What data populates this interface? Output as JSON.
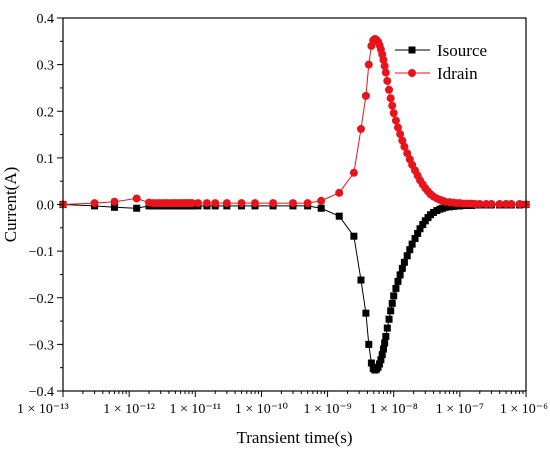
{
  "chart_data": {
    "type": "line",
    "xlabel": "Transient time(s)",
    "ylabel": "Current(A)",
    "x_scale": "log",
    "xlim": [
      1e-13,
      1e-06
    ],
    "ylim": [
      -0.4,
      0.4
    ],
    "x_tick_values": [
      1e-13,
      1e-12,
      1e-11,
      1e-10,
      1e-09,
      1e-08,
      1e-07,
      1e-06
    ],
    "x_tick_labels": [
      "1 × 10⁻¹³",
      "1 × 10⁻¹²",
      "1 × 10⁻¹¹",
      "1 × 10⁻¹⁰",
      "1 × 10⁻⁹",
      "1 × 10⁻⁸",
      "1 × 10⁻⁷",
      "1 × 10⁻⁶"
    ],
    "y_tick_values": [
      -0.4,
      -0.3,
      -0.2,
      -0.1,
      0.0,
      0.1,
      0.2,
      0.3,
      0.4
    ],
    "y_tick_labels": [
      "−0.4",
      "−0.3",
      "−0.2",
      "−0.1",
      "0.0",
      "0.1",
      "0.2",
      "0.3",
      "0.4"
    ],
    "legend_position": "top-right",
    "grid": false,
    "series": [
      {
        "name": "Isource",
        "color": "#000000",
        "marker": "square",
        "x": [
          1e-13,
          3e-13,
          6e-13,
          1.3e-12,
          2e-12,
          2.3e-12,
          2.6e-12,
          2.9e-12,
          3.2e-12,
          3.5e-12,
          3.8e-12,
          4.2e-12,
          4.6e-12,
          5e-12,
          5.5e-12,
          6e-12,
          6.5e-12,
          7e-12,
          7.5e-12,
          8e-12,
          8.5e-12,
          9e-12,
          1.1e-11,
          1.5e-11,
          2e-11,
          3e-11,
          5e-11,
          8e-11,
          1.5e-10,
          3e-10,
          5e-10,
          8e-10,
          1.5e-09,
          2.5e-09,
          3.2e-09,
          3.8e-09,
          4.2e-09,
          4.6e-09,
          4.9e-09,
          5.2e-09,
          5.5e-09,
          5.8e-09,
          6.1e-09,
          6.4e-09,
          6.7e-09,
          7e-09,
          7.3e-09,
          7.6e-09,
          8e-09,
          8.5e-09,
          9e-09,
          9.5e-09,
          1e-08,
          1.08e-08,
          1.16e-08,
          1.25e-08,
          1.35e-08,
          1.45e-08,
          1.6e-08,
          1.75e-08,
          1.9e-08,
          2.1e-08,
          2.3e-08,
          2.5e-08,
          2.75e-08,
          3e-08,
          3.3e-08,
          3.6e-08,
          4e-08,
          4.5e-08,
          5e-08,
          5.5e-08,
          6e-08,
          7e-08,
          8e-08,
          9e-08,
          1e-07,
          1.15e-07,
          1.3e-07,
          1.5e-07,
          1.7e-07,
          2e-07,
          2.5e-07,
          3e-07,
          4e-07,
          5e-07,
          6e-07,
          8e-07,
          1e-06
        ],
        "y": [
          0.0,
          -0.003,
          -0.006,
          -0.008,
          -0.003,
          -0.003,
          -0.003,
          -0.003,
          -0.003,
          -0.003,
          -0.003,
          -0.003,
          -0.003,
          -0.003,
          -0.003,
          -0.003,
          -0.003,
          -0.003,
          -0.003,
          -0.003,
          -0.003,
          -0.003,
          -0.003,
          -0.003,
          -0.003,
          -0.003,
          -0.003,
          -0.003,
          -0.003,
          -0.003,
          -0.003,
          -0.008,
          -0.025,
          -0.068,
          -0.162,
          -0.233,
          -0.3,
          -0.34,
          -0.352,
          -0.355,
          -0.353,
          -0.349,
          -0.342,
          -0.333,
          -0.322,
          -0.31,
          -0.297,
          -0.283,
          -0.265,
          -0.246,
          -0.228,
          -0.212,
          -0.196,
          -0.18,
          -0.165,
          -0.151,
          -0.137,
          -0.124,
          -0.11,
          -0.097,
          -0.085,
          -0.073,
          -0.062,
          -0.052,
          -0.043,
          -0.035,
          -0.028,
          -0.022,
          -0.017,
          -0.013,
          -0.01,
          -0.008,
          -0.006,
          -0.005,
          -0.004,
          -0.003,
          -0.003,
          -0.002,
          -0.002,
          -0.002,
          -0.001,
          -0.001,
          -0.001,
          -0.001,
          -0.001,
          -0.001,
          -0.001,
          -0.001,
          0.0
        ]
      },
      {
        "name": "Idrain",
        "color": "#e8131b",
        "marker": "circle",
        "x": [
          1e-13,
          3e-13,
          6e-13,
          1.3e-12,
          2e-12,
          2.3e-12,
          2.6e-12,
          2.9e-12,
          3.2e-12,
          3.5e-12,
          3.8e-12,
          4.2e-12,
          4.6e-12,
          5e-12,
          5.5e-12,
          6e-12,
          6.5e-12,
          7e-12,
          7.5e-12,
          8e-12,
          8.5e-12,
          9e-12,
          1.1e-11,
          1.5e-11,
          2e-11,
          3e-11,
          5e-11,
          8e-11,
          1.5e-10,
          3e-10,
          5e-10,
          8e-10,
          1.5e-09,
          2.5e-09,
          3.2e-09,
          3.8e-09,
          4.2e-09,
          4.6e-09,
          4.9e-09,
          5.2e-09,
          5.5e-09,
          5.8e-09,
          6.1e-09,
          6.4e-09,
          6.7e-09,
          7e-09,
          7.3e-09,
          7.6e-09,
          8e-09,
          8.5e-09,
          9e-09,
          9.5e-09,
          1e-08,
          1.08e-08,
          1.16e-08,
          1.25e-08,
          1.35e-08,
          1.45e-08,
          1.6e-08,
          1.75e-08,
          1.9e-08,
          2.1e-08,
          2.3e-08,
          2.5e-08,
          2.75e-08,
          3e-08,
          3.3e-08,
          3.6e-08,
          4e-08,
          4.5e-08,
          5e-08,
          5.5e-08,
          6e-08,
          7e-08,
          8e-08,
          9e-08,
          1e-07,
          1.15e-07,
          1.3e-07,
          1.5e-07,
          1.7e-07,
          2e-07,
          2.5e-07,
          3e-07,
          4e-07,
          5e-07,
          6e-07,
          8e-07,
          1e-06
        ],
        "y": [
          0.0,
          0.003,
          0.006,
          0.013,
          0.004,
          0.003,
          0.003,
          0.003,
          0.003,
          0.003,
          0.003,
          0.003,
          0.003,
          0.003,
          0.003,
          0.003,
          0.003,
          0.003,
          0.003,
          0.003,
          0.003,
          0.003,
          0.003,
          0.003,
          0.003,
          0.003,
          0.003,
          0.003,
          0.003,
          0.003,
          0.003,
          0.008,
          0.025,
          0.068,
          0.162,
          0.233,
          0.3,
          0.34,
          0.352,
          0.355,
          0.353,
          0.349,
          0.342,
          0.333,
          0.322,
          0.31,
          0.297,
          0.283,
          0.265,
          0.246,
          0.228,
          0.212,
          0.196,
          0.18,
          0.165,
          0.151,
          0.137,
          0.124,
          0.11,
          0.097,
          0.085,
          0.073,
          0.062,
          0.052,
          0.043,
          0.035,
          0.028,
          0.022,
          0.017,
          0.013,
          0.01,
          0.008,
          0.006,
          0.005,
          0.004,
          0.003,
          0.003,
          0.002,
          0.002,
          0.002,
          0.001,
          0.001,
          0.001,
          0.001,
          0.001,
          0.001,
          0.001,
          0.001,
          0.0
        ]
      }
    ]
  }
}
